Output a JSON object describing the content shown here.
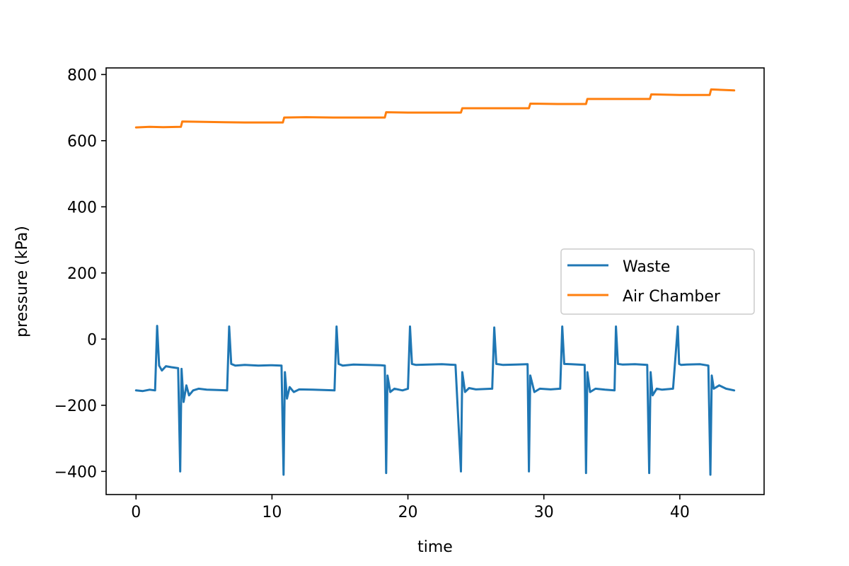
{
  "chart_data": {
    "type": "line",
    "xlabel": "time",
    "ylabel": "pressure (kPa)",
    "xlim": [
      -2.2,
      46.2
    ],
    "ylim": [
      -470,
      820
    ],
    "xticks": [
      0,
      10,
      20,
      30,
      40
    ],
    "yticks": [
      -400,
      -200,
      0,
      200,
      400,
      600,
      800
    ],
    "xtick_labels": [
      "0",
      "10",
      "20",
      "30",
      "40"
    ],
    "ytick_labels": [
      "−400",
      "−200",
      "0",
      "200",
      "400",
      "600",
      "800"
    ],
    "grid": false,
    "legend_position": "center-right",
    "series": [
      {
        "name": "Waste",
        "color": "#1f77b4",
        "x": [
          0.0,
          0.5,
          1.0,
          1.4,
          1.55,
          1.7,
          1.9,
          2.2,
          2.6,
          3.1,
          3.25,
          3.35,
          3.5,
          3.7,
          3.9,
          4.2,
          4.6,
          5.2,
          6.0,
          6.7,
          6.85,
          7.0,
          7.3,
          8.0,
          9.0,
          10.0,
          10.7,
          10.85,
          10.95,
          11.1,
          11.3,
          11.6,
          12.0,
          13.0,
          14.6,
          14.75,
          14.9,
          15.2,
          16.0,
          17.0,
          18.0,
          18.3,
          18.4,
          18.5,
          18.7,
          19.0,
          19.6,
          20.0,
          20.15,
          20.3,
          20.6,
          21.5,
          22.5,
          23.5,
          23.9,
          24.0,
          24.2,
          24.5,
          25.0,
          26.2,
          26.35,
          26.5,
          27.0,
          28.0,
          28.8,
          28.9,
          29.0,
          29.3,
          29.7,
          30.5,
          31.2,
          31.35,
          31.5,
          32.0,
          33.0,
          33.1,
          33.2,
          33.4,
          33.8,
          34.5,
          35.2,
          35.3,
          35.45,
          35.8,
          36.7,
          37.6,
          37.75,
          37.85,
          38.0,
          38.3,
          38.7,
          39.5,
          39.85,
          39.95,
          40.1,
          40.5,
          41.5,
          42.1,
          42.25,
          42.35,
          42.5,
          42.9,
          43.4,
          44.0
        ],
        "y": [
          -155,
          -157,
          -153,
          -155,
          40,
          -80,
          -95,
          -82,
          -85,
          -88,
          -400,
          -90,
          -190,
          -140,
          -170,
          -155,
          -150,
          -153,
          -154,
          -155,
          38,
          -75,
          -80,
          -78,
          -80,
          -79,
          -80,
          -410,
          -100,
          -180,
          -145,
          -160,
          -152,
          -153,
          -155,
          38,
          -75,
          -80,
          -77,
          -78,
          -79,
          -80,
          -405,
          -110,
          -160,
          -150,
          -155,
          -150,
          38,
          -75,
          -78,
          -77,
          -76,
          -78,
          -400,
          -100,
          -160,
          -148,
          -152,
          -150,
          35,
          -75,
          -78,
          -77,
          -76,
          -400,
          -110,
          -160,
          -150,
          -152,
          -150,
          38,
          -75,
          -76,
          -78,
          -405,
          -100,
          -160,
          -150,
          -153,
          -155,
          38,
          -75,
          -77,
          -76,
          -78,
          -405,
          -100,
          -170,
          -150,
          -153,
          -150,
          38,
          -75,
          -78,
          -77,
          -76,
          -80,
          -410,
          -110,
          -150,
          -140,
          -150,
          -155
        ]
      },
      {
        "name": "Air Chamber",
        "color": "#ff7f0e",
        "x": [
          0.0,
          1.0,
          2.0,
          3.3,
          3.4,
          5.0,
          6.5,
          8.0,
          9.5,
          10.8,
          10.9,
          12.5,
          14.5,
          16.0,
          18.3,
          18.4,
          20.0,
          22.0,
          23.9,
          24.0,
          26.0,
          28.9,
          29.0,
          31.0,
          33.1,
          33.2,
          35.0,
          37.8,
          37.9,
          40.0,
          42.2,
          42.3,
          44.0
        ],
        "y": [
          640,
          642,
          641,
          642,
          658,
          657,
          656,
          655,
          655,
          655,
          670,
          671,
          670,
          670,
          670,
          686,
          685,
          685,
          685,
          698,
          698,
          698,
          712,
          711,
          711,
          726,
          726,
          726,
          740,
          738,
          738,
          755,
          752
        ]
      }
    ]
  }
}
